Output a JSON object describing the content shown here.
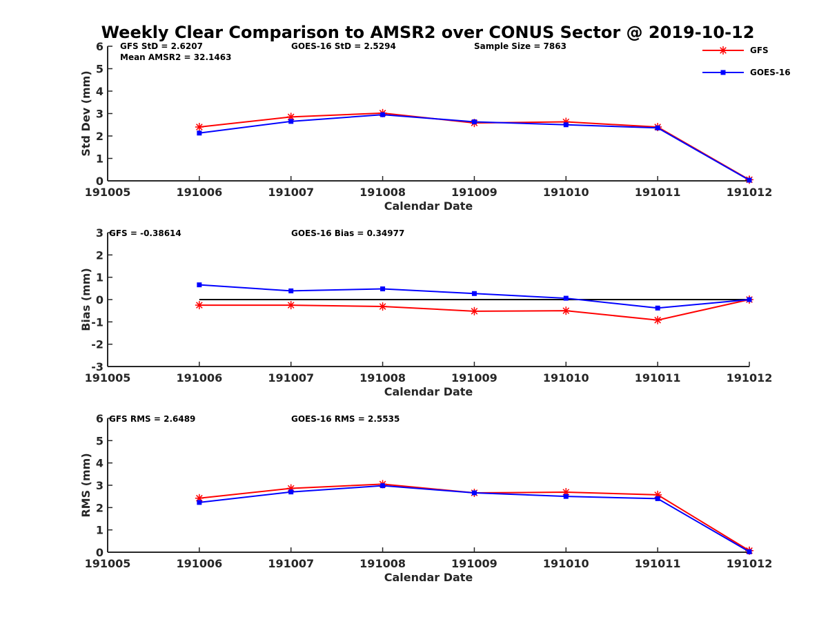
{
  "title": "Weekly Clear Comparison to AMSR2 over CONUS Sector @ 2019-10-12",
  "colors": {
    "GFS": "#ff0000",
    "GOES-16": "#0000ff",
    "zero_line": "#000000",
    "axis": "#262626"
  },
  "legend": {
    "placement": "top-right",
    "entries": [
      {
        "label": "GFS",
        "color": "#ff0000",
        "marker": "asterisk"
      },
      {
        "label": "GOES-16",
        "color": "#0000ff",
        "marker": "square"
      }
    ]
  },
  "chart_data": [
    {
      "type": "line",
      "xlabel": "Calendar Date",
      "ylabel": "Std Dev (mm)",
      "categories": [
        "191005",
        "191006",
        "191007",
        "191008",
        "191009",
        "191010",
        "191011",
        "191012"
      ],
      "ylim": [
        0,
        6
      ],
      "yticks": [
        0,
        1,
        2,
        3,
        4,
        5,
        6
      ],
      "zero_line": false,
      "series": [
        {
          "name": "GFS",
          "x": [
            "191006",
            "191007",
            "191008",
            "191009",
            "191010",
            "191011",
            "191012"
          ],
          "values": [
            2.4,
            2.85,
            3.02,
            2.58,
            2.63,
            2.4,
            0.05
          ]
        },
        {
          "name": "GOES-16",
          "x": [
            "191006",
            "191007",
            "191008",
            "191009",
            "191010",
            "191011",
            "191012"
          ],
          "values": [
            2.13,
            2.65,
            2.95,
            2.63,
            2.5,
            2.36,
            0.03
          ]
        }
      ],
      "annotations": [
        "GFS StD = 2.6207",
        "Mean AMSR2 = 32.1463",
        "GOES-16 StD = 2.5294",
        "Sample Size = 7863"
      ]
    },
    {
      "type": "line",
      "xlabel": "Calendar Date",
      "ylabel": "Bias (mm)",
      "categories": [
        "191005",
        "191006",
        "191007",
        "191008",
        "191009",
        "191010",
        "191011",
        "191012"
      ],
      "ylim": [
        -3,
        3
      ],
      "yticks": [
        -3,
        -2,
        -1,
        0,
        1,
        2,
        3
      ],
      "zero_line": true,
      "series": [
        {
          "name": "GFS",
          "x": [
            "191006",
            "191007",
            "191008",
            "191009",
            "191010",
            "191011",
            "191012"
          ],
          "values": [
            -0.25,
            -0.25,
            -0.31,
            -0.52,
            -0.5,
            -0.92,
            0.0
          ]
        },
        {
          "name": "GOES-16",
          "x": [
            "191006",
            "191007",
            "191008",
            "191009",
            "191010",
            "191011",
            "191012"
          ],
          "values": [
            0.66,
            0.39,
            0.48,
            0.27,
            0.06,
            -0.38,
            0.0
          ]
        }
      ],
      "annotations": [
        "GFS = -0.38614",
        "GOES-16 Bias  = 0.34977"
      ]
    },
    {
      "type": "line",
      "xlabel": "Calendar Date",
      "ylabel": "RMS (mm)",
      "categories": [
        "191005",
        "191006",
        "191007",
        "191008",
        "191009",
        "191010",
        "191011",
        "191012"
      ],
      "ylim": [
        0,
        6
      ],
      "yticks": [
        0,
        1,
        2,
        3,
        4,
        5,
        6
      ],
      "zero_line": false,
      "series": [
        {
          "name": "GFS",
          "x": [
            "191006",
            "191007",
            "191008",
            "191009",
            "191010",
            "191011",
            "191012"
          ],
          "values": [
            2.42,
            2.86,
            3.05,
            2.66,
            2.69,
            2.57,
            0.07
          ]
        },
        {
          "name": "GOES-16",
          "x": [
            "191006",
            "191007",
            "191008",
            "191009",
            "191010",
            "191011",
            "191012"
          ],
          "values": [
            2.23,
            2.7,
            2.98,
            2.66,
            2.5,
            2.4,
            0.02
          ]
        }
      ],
      "annotations": [
        "GFS RMS = 2.6489",
        "GOES-16 RMS = 2.5535"
      ]
    }
  ]
}
